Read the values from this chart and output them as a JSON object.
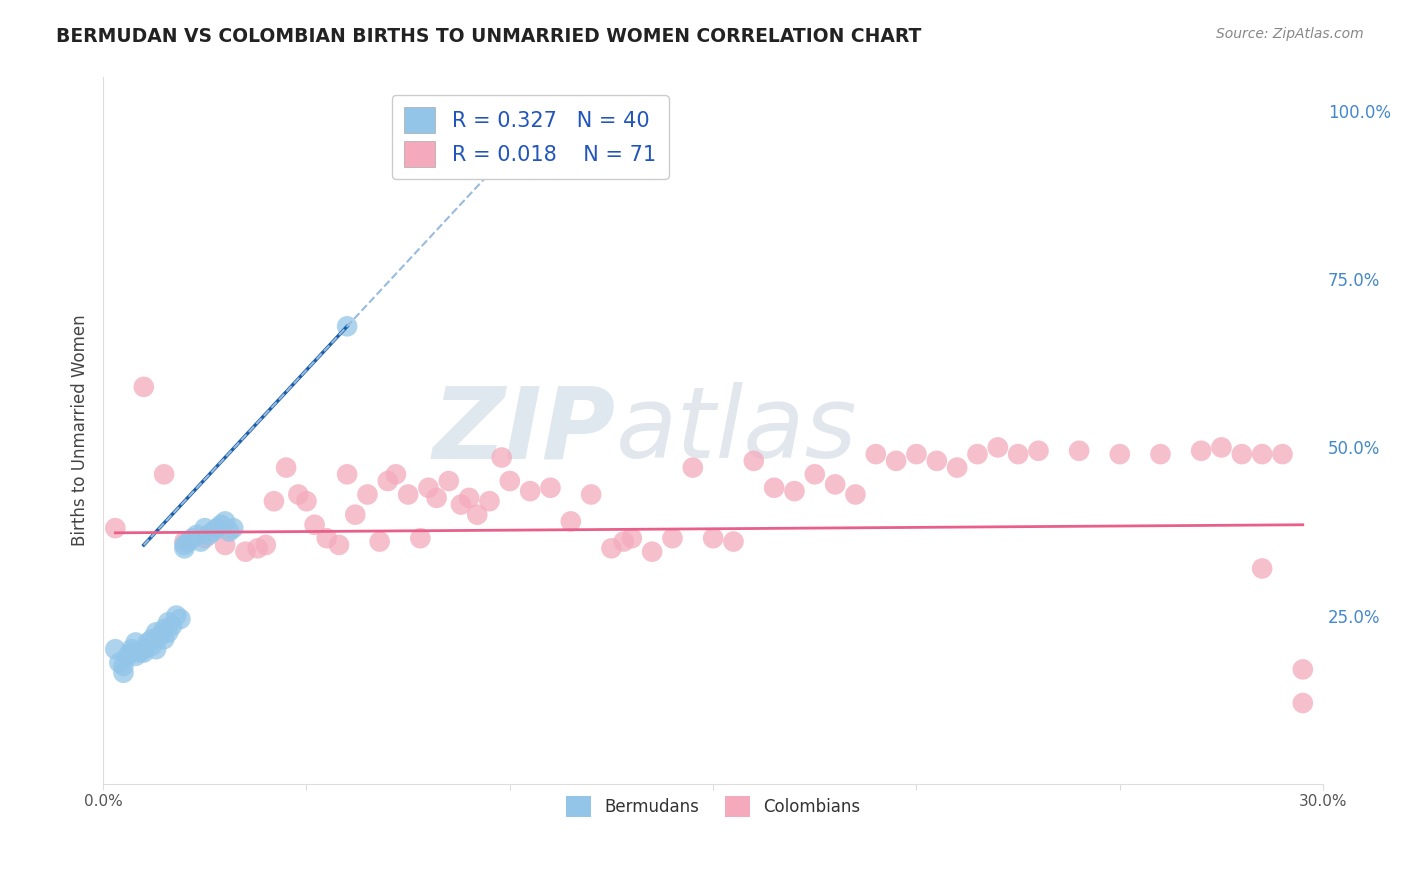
{
  "title": "BERMUDAN VS COLOMBIAN BIRTHS TO UNMARRIED WOMEN CORRELATION CHART",
  "source": "Source: ZipAtlas.com",
  "ylabel": "Births to Unmarried Women",
  "xlim": [
    0.0,
    0.3
  ],
  "ylim": [
    0.0,
    1.05
  ],
  "xticks": [
    0.0,
    0.05,
    0.1,
    0.15,
    0.2,
    0.25,
    0.3
  ],
  "xticklabels": [
    "0.0%",
    "",
    "",
    "",
    "",
    "",
    "30.0%"
  ],
  "yticks_right": [
    0.25,
    0.5,
    0.75,
    1.0
  ],
  "yticklabels_right": [
    "25.0%",
    "50.0%",
    "75.0%",
    "100.0%"
  ],
  "legend_labels": [
    "Bermudans",
    "Colombians"
  ],
  "legend_R": [
    "R = 0.327",
    "R = 0.018"
  ],
  "legend_N": [
    "N = 40",
    "N = 71"
  ],
  "blue_color": "#92C5E8",
  "pink_color": "#F4AABC",
  "blue_line_color": "#1A5FAB",
  "blue_dash_color": "#99BBDD",
  "pink_line_color": "#E8608A",
  "watermark_zip": "ZIP",
  "watermark_atlas": "atlas",
  "background_color": "#FFFFFF",
  "grid_color": "#CCCCCC",
  "blue_scatter_x": [
    0.003,
    0.004,
    0.005,
    0.005,
    0.006,
    0.007,
    0.007,
    0.008,
    0.008,
    0.009,
    0.01,
    0.01,
    0.011,
    0.012,
    0.012,
    0.013,
    0.013,
    0.014,
    0.015,
    0.015,
    0.016,
    0.016,
    0.017,
    0.018,
    0.019,
    0.02,
    0.02,
    0.021,
    0.022,
    0.023,
    0.024,
    0.025,
    0.026,
    0.027,
    0.028,
    0.029,
    0.03,
    0.031,
    0.032,
    0.06
  ],
  "blue_scatter_y": [
    0.2,
    0.18,
    0.175,
    0.165,
    0.19,
    0.195,
    0.2,
    0.21,
    0.19,
    0.195,
    0.2,
    0.195,
    0.21,
    0.215,
    0.205,
    0.2,
    0.225,
    0.22,
    0.23,
    0.215,
    0.24,
    0.225,
    0.235,
    0.25,
    0.245,
    0.35,
    0.355,
    0.36,
    0.365,
    0.37,
    0.36,
    0.38,
    0.37,
    0.375,
    0.38,
    0.385,
    0.39,
    0.375,
    0.38,
    0.68
  ],
  "pink_scatter_x": [
    0.003,
    0.01,
    0.015,
    0.02,
    0.025,
    0.03,
    0.035,
    0.038,
    0.04,
    0.042,
    0.045,
    0.048,
    0.05,
    0.052,
    0.055,
    0.058,
    0.06,
    0.062,
    0.065,
    0.068,
    0.07,
    0.072,
    0.075,
    0.078,
    0.08,
    0.082,
    0.085,
    0.088,
    0.09,
    0.092,
    0.095,
    0.098,
    0.1,
    0.105,
    0.11,
    0.115,
    0.12,
    0.125,
    0.128,
    0.13,
    0.135,
    0.14,
    0.145,
    0.15,
    0.155,
    0.16,
    0.165,
    0.17,
    0.175,
    0.18,
    0.185,
    0.19,
    0.195,
    0.2,
    0.205,
    0.21,
    0.215,
    0.22,
    0.225,
    0.23,
    0.24,
    0.25,
    0.26,
    0.27,
    0.275,
    0.28,
    0.285,
    0.29,
    0.295,
    0.295,
    0.285
  ],
  "pink_scatter_y": [
    0.38,
    0.59,
    0.46,
    0.36,
    0.365,
    0.355,
    0.345,
    0.35,
    0.355,
    0.42,
    0.47,
    0.43,
    0.42,
    0.385,
    0.365,
    0.355,
    0.46,
    0.4,
    0.43,
    0.36,
    0.45,
    0.46,
    0.43,
    0.365,
    0.44,
    0.425,
    0.45,
    0.415,
    0.425,
    0.4,
    0.42,
    0.485,
    0.45,
    0.435,
    0.44,
    0.39,
    0.43,
    0.35,
    0.36,
    0.365,
    0.345,
    0.365,
    0.47,
    0.365,
    0.36,
    0.48,
    0.44,
    0.435,
    0.46,
    0.445,
    0.43,
    0.49,
    0.48,
    0.49,
    0.48,
    0.47,
    0.49,
    0.5,
    0.49,
    0.495,
    0.495,
    0.49,
    0.49,
    0.495,
    0.5,
    0.49,
    0.49,
    0.49,
    0.17,
    0.12,
    0.32
  ]
}
